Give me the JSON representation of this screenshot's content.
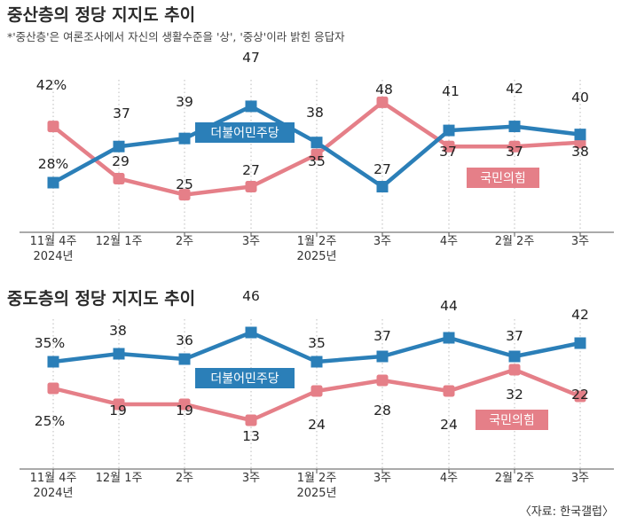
{
  "source": "〈자료: 한국갤럽〉",
  "colors": {
    "blue": "#2b7fb8",
    "pink": "#e57f88"
  },
  "charts": [
    {
      "title": "중산층의 정당 지지도 추이",
      "note": "*'중산층'은 여론조사에서 자신의 생활수준을 '상', '중상'이라 밝힌 응답자",
      "ticks": [
        {
          "l1": "11월 4주",
          "l2": "2024년"
        },
        {
          "l1": "12월 1주",
          "l2": ""
        },
        {
          "l1": "2주",
          "l2": ""
        },
        {
          "l1": "3주",
          "l2": ""
        },
        {
          "l1": "1월 2주",
          "l2": "2025년"
        },
        {
          "l1": "3주",
          "l2": ""
        },
        {
          "l1": "4주",
          "l2": ""
        },
        {
          "l1": "2월 2주",
          "l2": ""
        },
        {
          "l1": "3주",
          "l2": ""
        }
      ],
      "chart_data": {
        "type": "line",
        "series": [
          {
            "name": "더불어민주당",
            "color": "#2b7fb8",
            "values": [
              28,
              37,
              39,
              47,
              38,
              27,
              41,
              42,
              40
            ],
            "labels": [
              "28%",
              "37",
              "39",
              "47",
              "38",
              "27",
              "41",
              "42",
              "40"
            ]
          },
          {
            "name": "국민의힘",
            "color": "#e57f88",
            "values": [
              42,
              29,
              25,
              27,
              35,
              48,
              37,
              37,
              38
            ],
            "labels": [
              "42%",
              "29",
              "25",
              "27",
              "35",
              "48",
              "37",
              "37",
              "38"
            ]
          }
        ]
      }
    },
    {
      "title": "중도층의 정당 지지도 추이",
      "note": "",
      "ticks": [
        {
          "l1": "11월 4주",
          "l2": "2024년"
        },
        {
          "l1": "12월 1주",
          "l2": ""
        },
        {
          "l1": "2주",
          "l2": ""
        },
        {
          "l1": "3주",
          "l2": ""
        },
        {
          "l1": "1월 2주",
          "l2": "2025년"
        },
        {
          "l1": "3주",
          "l2": ""
        },
        {
          "l1": "4주",
          "l2": ""
        },
        {
          "l1": "2월 2주",
          "l2": ""
        },
        {
          "l1": "3주",
          "l2": ""
        }
      ],
      "chart_data": {
        "type": "line",
        "series": [
          {
            "name": "더불어민주당",
            "color": "#2b7fb8",
            "values": [
              35,
              38,
              36,
              46,
              35,
              37,
              44,
              37,
              42
            ],
            "labels": [
              "35%",
              "38",
              "36",
              "46",
              "35",
              "37",
              "44",
              "37",
              "42"
            ]
          },
          {
            "name": "국민의힘",
            "color": "#e57f88",
            "values": [
              25,
              19,
              19,
              13,
              24,
              28,
              24,
              32,
              22
            ],
            "labels": [
              "25%",
              "19",
              "19",
              "13",
              "24",
              "28",
              "24",
              "32",
              "22"
            ]
          }
        ]
      }
    }
  ]
}
